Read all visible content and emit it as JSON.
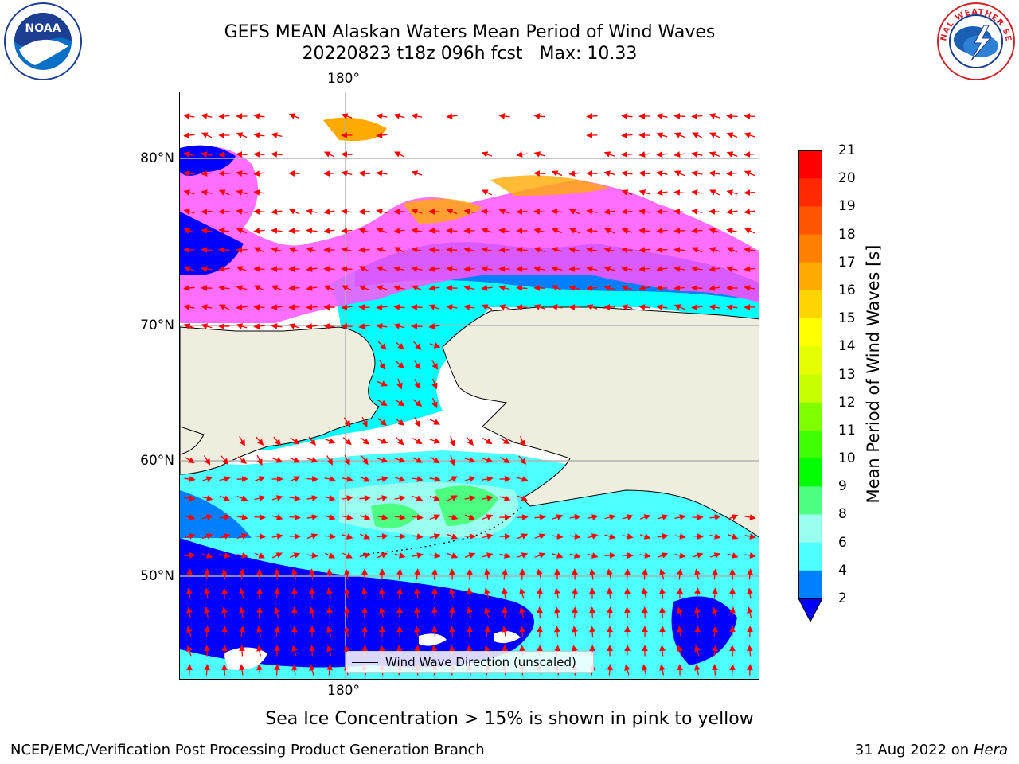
{
  "title": {
    "line1": "GEFS MEAN Alaskan Waters Mean Period of Wind Waves",
    "line2_date": "20220823 t18z 096h fcst",
    "line2_max": "Max: 10.33"
  },
  "logos": {
    "left": "NOAA",
    "right": "NATIONAL WEATHER SERVICE"
  },
  "map": {
    "lon_label_top": "180°",
    "lon_label_bottom": "180°",
    "lat_labels": [
      "80°N",
      "70°N",
      "60°N",
      "50°N"
    ],
    "legend_label": "Wind Wave Direction (unscaled)",
    "land_color": "#efedde",
    "arrow_color": "#ff0000"
  },
  "colorbar": {
    "label": "Mean Period of Wind Waves [s]",
    "ticks": [
      "21",
      "20",
      "19",
      "18",
      "17",
      "16",
      "15",
      "14",
      "13",
      "12",
      "11",
      "10",
      "9",
      "8",
      "6",
      "4",
      "2"
    ],
    "colors": [
      "#ff0000",
      "#ff2a00",
      "#ff5500",
      "#ff8000",
      "#ffaa00",
      "#ffd500",
      "#ffff00",
      "#e6ff00",
      "#c8ff00",
      "#80ff00",
      "#40ff00",
      "#00ff00",
      "#4cff80",
      "#99ffee",
      "#4dffff",
      "#00ffff",
      "#0080ff",
      "#0000ff"
    ]
  },
  "caption": "Sea Ice Concentration > 15% is shown in pink to yellow",
  "footer": {
    "left": "NCEP/EMC/Verification Post Processing Product Generation Branch",
    "right_date": "31 Aug 2022 on",
    "right_machine": "Hera"
  }
}
